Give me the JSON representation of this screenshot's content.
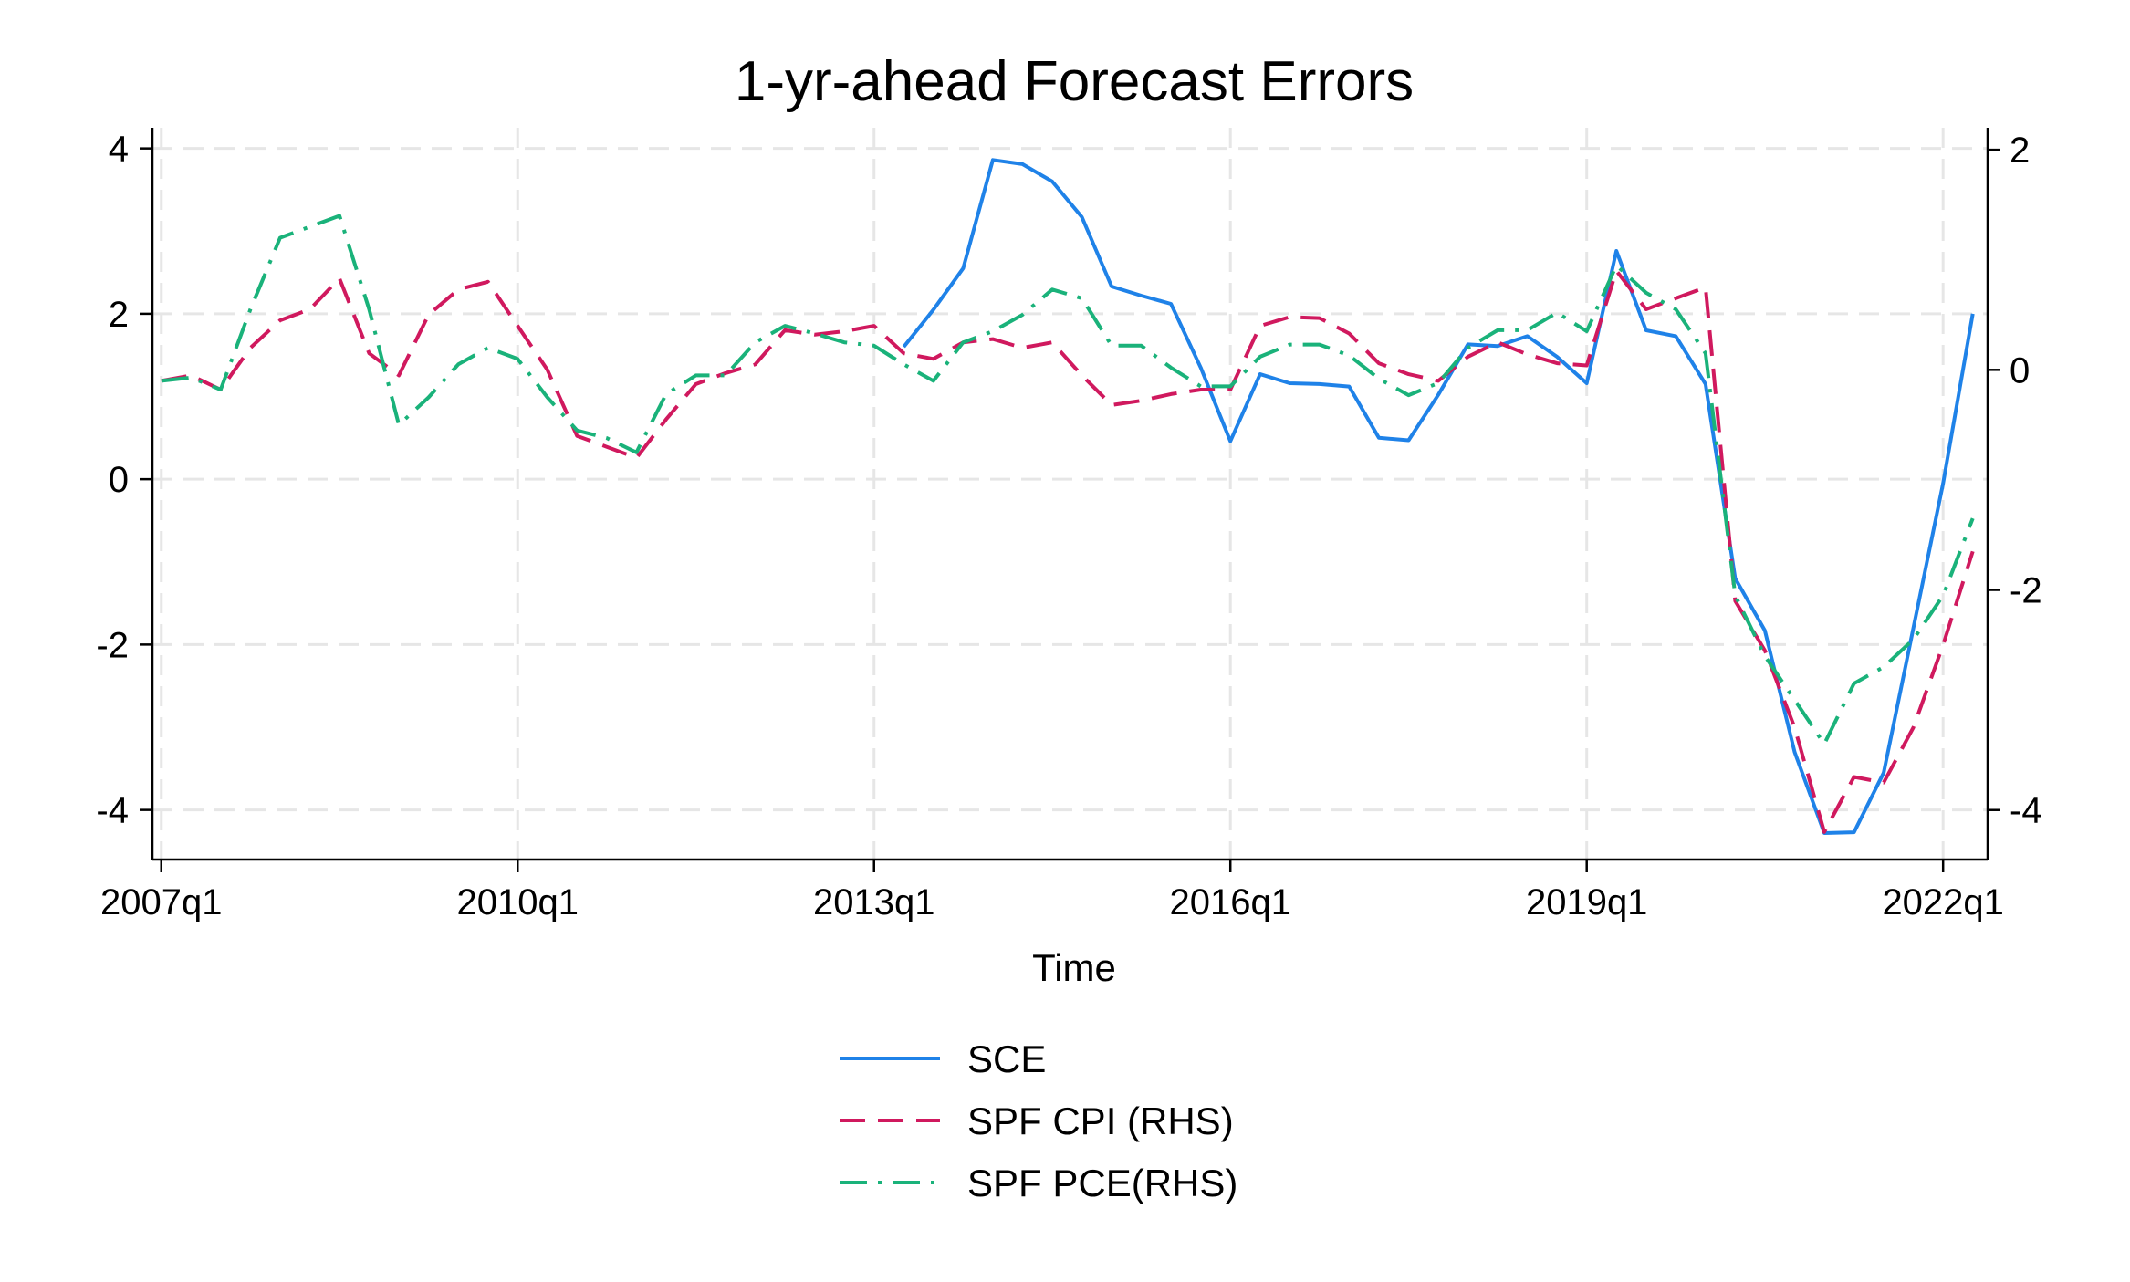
{
  "chart_data": {
    "type": "line",
    "title": "1-yr-ahead Forecast Errors",
    "xlabel": "Time",
    "ylabel": "",
    "y2label": "",
    "x_tick_labels": [
      "2007q1",
      "2010q1",
      "2013q1",
      "2016q1",
      "2019q1",
      "2022q1"
    ],
    "x_tick_positions": [
      0,
      12,
      24,
      36,
      48,
      60
    ],
    "x_range": [
      -0.3,
      61.5
    ],
    "y_left": {
      "ticks": [
        -4,
        -2,
        0,
        2,
        4
      ],
      "tick_labels": [
        "-4",
        "-2",
        "0",
        "2",
        "4"
      ],
      "range": [
        -4.6,
        4.25
      ]
    },
    "y_right": {
      "ticks": [
        -4,
        -2,
        0,
        2
      ],
      "tick_labels": [
        "-4",
        "-2",
        "0",
        "2"
      ],
      "range": [
        -4.45,
        2.2
      ]
    },
    "grid": true,
    "legend_position": "bottom",
    "series": [
      {
        "name": "SCE",
        "axis": "left",
        "color": "#1f82e8",
        "dash": "solid",
        "points": [
          [
            25,
            1.6
          ],
          [
            26,
            2.05
          ],
          [
            27,
            2.55
          ],
          [
            28,
            3.86
          ],
          [
            29,
            3.81
          ],
          [
            30,
            3.6
          ],
          [
            31,
            3.17
          ],
          [
            32,
            2.33
          ],
          [
            33,
            2.22
          ],
          [
            34,
            2.12
          ],
          [
            35,
            1.35
          ],
          [
            36,
            0.46
          ],
          [
            37,
            1.27
          ],
          [
            38,
            1.16
          ],
          [
            39,
            1.15
          ],
          [
            40,
            1.12
          ],
          [
            41,
            0.5
          ],
          [
            42,
            0.47
          ],
          [
            43,
            1.02
          ],
          [
            44,
            1.63
          ],
          [
            45,
            1.61
          ],
          [
            46,
            1.73
          ],
          [
            47,
            1.48
          ],
          [
            48,
            1.16
          ],
          [
            49,
            2.76
          ],
          [
            50,
            1.8
          ],
          [
            51,
            1.73
          ],
          [
            52,
            1.15
          ],
          [
            53,
            -1.2
          ],
          [
            54,
            -1.83
          ],
          [
            55,
            -3.3
          ],
          [
            56,
            -4.28
          ],
          [
            57,
            -4.27
          ],
          [
            58,
            -3.55
          ],
          [
            59,
            -1.8
          ],
          [
            60,
            -0.05
          ],
          [
            61,
            2.0
          ]
        ]
      },
      {
        "name": "SPF CPI (RHS)",
        "axis": "right",
        "color": "#d0195e",
        "dash": "dashed",
        "points": [
          [
            0,
            -0.1
          ],
          [
            1,
            -0.05
          ],
          [
            2,
            -0.18
          ],
          [
            3,
            0.2
          ],
          [
            4,
            0.45
          ],
          [
            5,
            0.55
          ],
          [
            6,
            0.83
          ],
          [
            7,
            0.15
          ],
          [
            8,
            -0.05
          ],
          [
            9,
            0.5
          ],
          [
            10,
            0.73
          ],
          [
            11,
            0.8
          ],
          [
            12,
            0.4
          ],
          [
            13,
            0.0
          ],
          [
            14,
            -0.6
          ],
          [
            15,
            -0.7
          ],
          [
            16,
            -0.8
          ],
          [
            17,
            -0.45
          ],
          [
            18,
            -0.13
          ],
          [
            19,
            -0.03
          ],
          [
            20,
            0.05
          ],
          [
            21,
            0.36
          ],
          [
            22,
            0.32
          ],
          [
            23,
            0.35
          ],
          [
            24,
            0.4
          ],
          [
            25,
            0.15
          ],
          [
            26,
            0.1
          ],
          [
            27,
            0.25
          ],
          [
            28,
            0.28
          ],
          [
            29,
            0.2
          ],
          [
            30,
            0.25
          ],
          [
            31,
            -0.05
          ],
          [
            32,
            -0.32
          ],
          [
            33,
            -0.28
          ],
          [
            34,
            -0.22
          ],
          [
            35,
            -0.18
          ],
          [
            36,
            -0.18
          ],
          [
            37,
            0.4
          ],
          [
            38,
            0.48
          ],
          [
            39,
            0.47
          ],
          [
            40,
            0.33
          ],
          [
            41,
            0.06
          ],
          [
            42,
            -0.04
          ],
          [
            43,
            -0.1
          ],
          [
            44,
            0.12
          ],
          [
            45,
            0.25
          ],
          [
            46,
            0.14
          ],
          [
            47,
            0.06
          ],
          [
            48,
            0.04
          ],
          [
            49,
            0.9
          ],
          [
            50,
            0.55
          ],
          [
            51,
            0.65
          ],
          [
            52,
            0.75
          ],
          [
            53,
            -2.1
          ],
          [
            54,
            -2.55
          ],
          [
            55,
            -3.25
          ],
          [
            56,
            -4.2
          ],
          [
            57,
            -3.7
          ],
          [
            58,
            -3.75
          ],
          [
            59,
            -3.25
          ],
          [
            60,
            -2.5
          ],
          [
            61,
            -1.65
          ]
        ]
      },
      {
        "name": "SPF PCE(RHS)",
        "axis": "right",
        "color": "#1ab27a",
        "dash": "dashdot",
        "points": [
          [
            0,
            -0.1
          ],
          [
            1,
            -0.07
          ],
          [
            2,
            -0.18
          ],
          [
            3,
            0.55
          ],
          [
            4,
            1.2
          ],
          [
            5,
            1.3
          ],
          [
            6,
            1.4
          ],
          [
            7,
            0.55
          ],
          [
            8,
            -0.5
          ],
          [
            9,
            -0.25
          ],
          [
            10,
            0.05
          ],
          [
            11,
            0.2
          ],
          [
            12,
            0.1
          ],
          [
            13,
            -0.25
          ],
          [
            14,
            -0.55
          ],
          [
            15,
            -0.62
          ],
          [
            16,
            -0.75
          ],
          [
            17,
            -0.22
          ],
          [
            18,
            -0.05
          ],
          [
            19,
            -0.05
          ],
          [
            20,
            0.25
          ],
          [
            21,
            0.4
          ],
          [
            22,
            0.33
          ],
          [
            23,
            0.25
          ],
          [
            24,
            0.22
          ],
          [
            25,
            0.05
          ],
          [
            26,
            -0.1
          ],
          [
            27,
            0.25
          ],
          [
            28,
            0.35
          ],
          [
            29,
            0.5
          ],
          [
            30,
            0.73
          ],
          [
            31,
            0.65
          ],
          [
            32,
            0.22
          ],
          [
            33,
            0.22
          ],
          [
            34,
            0.02
          ],
          [
            35,
            -0.15
          ],
          [
            36,
            -0.15
          ],
          [
            37,
            0.12
          ],
          [
            38,
            0.23
          ],
          [
            39,
            0.23
          ],
          [
            40,
            0.13
          ],
          [
            41,
            -0.08
          ],
          [
            42,
            -0.23
          ],
          [
            43,
            -0.12
          ],
          [
            44,
            0.2
          ],
          [
            45,
            0.36
          ],
          [
            46,
            0.36
          ],
          [
            47,
            0.52
          ],
          [
            48,
            0.35
          ],
          [
            49,
            0.95
          ],
          [
            50,
            0.7
          ],
          [
            51,
            0.55
          ],
          [
            52,
            0.15
          ],
          [
            53,
            -2.05
          ],
          [
            54,
            -2.6
          ],
          [
            55,
            -3.0
          ],
          [
            56,
            -3.4
          ],
          [
            57,
            -2.85
          ],
          [
            58,
            -2.7
          ],
          [
            59,
            -2.45
          ],
          [
            60,
            -2.05
          ],
          [
            61,
            -1.35
          ]
        ]
      }
    ]
  }
}
